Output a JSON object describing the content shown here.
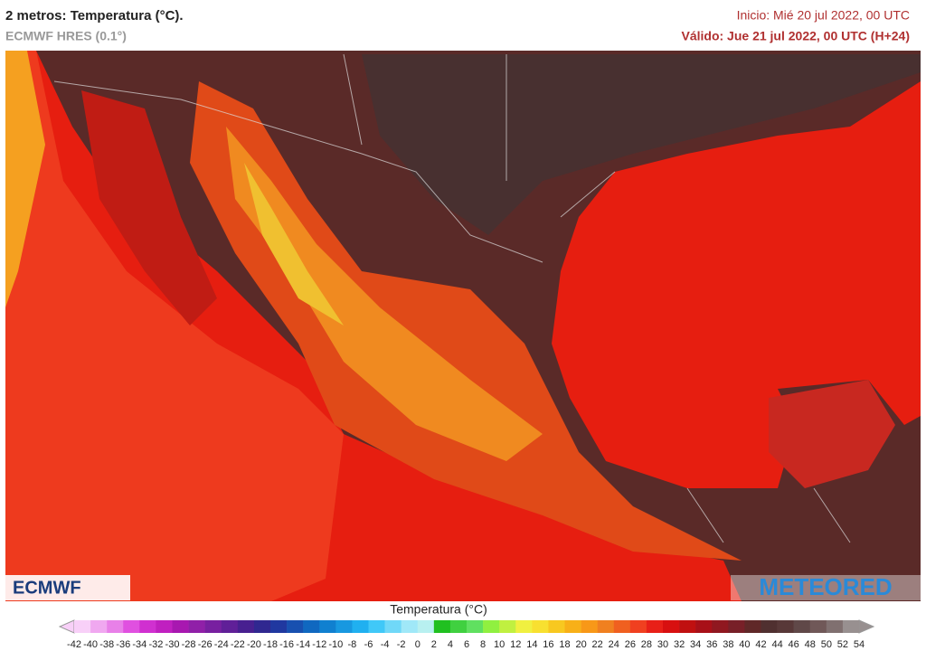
{
  "header": {
    "title": "2 metros: Temperatura (°C).",
    "subtitle": "ECMWF HRES (0.1°)",
    "start": "Inicio: Mié 20 jul 2022, 00 UTC",
    "valid": "Válido: Jue 21 jul 2022, 00 UTC (H+24)"
  },
  "logos": {
    "left": "ECMWF",
    "right": "METEORED"
  },
  "legend": {
    "title": "Temperatura (°C)",
    "ticks": [
      -42,
      -40,
      -38,
      -36,
      -34,
      -32,
      -30,
      -28,
      -26,
      -24,
      -22,
      -20,
      -18,
      -16,
      -14,
      -12,
      -10,
      -8,
      -6,
      -4,
      -2,
      0,
      2,
      4,
      6,
      8,
      10,
      12,
      14,
      16,
      18,
      20,
      22,
      24,
      26,
      28,
      30,
      32,
      34,
      36,
      38,
      40,
      42,
      44,
      46,
      48,
      50,
      52,
      54
    ],
    "colors": [
      "#f8d0f8",
      "#f0a8f0",
      "#e880e8",
      "#e050e0",
      "#d030d0",
      "#c020c0",
      "#a818b0",
      "#9020a8",
      "#7820a0",
      "#602098",
      "#482090",
      "#302890",
      "#2038a0",
      "#1850b0",
      "#1068c0",
      "#1080d0",
      "#1898e0",
      "#20b0f0",
      "#40c8f8",
      "#70d8f8",
      "#a0e8f8",
      "#b8f0f0",
      "#20c020",
      "#40d040",
      "#60e060",
      "#90f040",
      "#c0f040",
      "#f0f040",
      "#f8e030",
      "#f8c820",
      "#f8b018",
      "#f89818",
      "#f08020",
      "#f06020",
      "#f04020",
      "#e82018",
      "#d81010",
      "#c01010",
      "#a81018",
      "#901820",
      "#782028",
      "#602828",
      "#503030",
      "#583838",
      "#604848",
      "#705858",
      "#807070",
      "#989090"
    ]
  }
}
